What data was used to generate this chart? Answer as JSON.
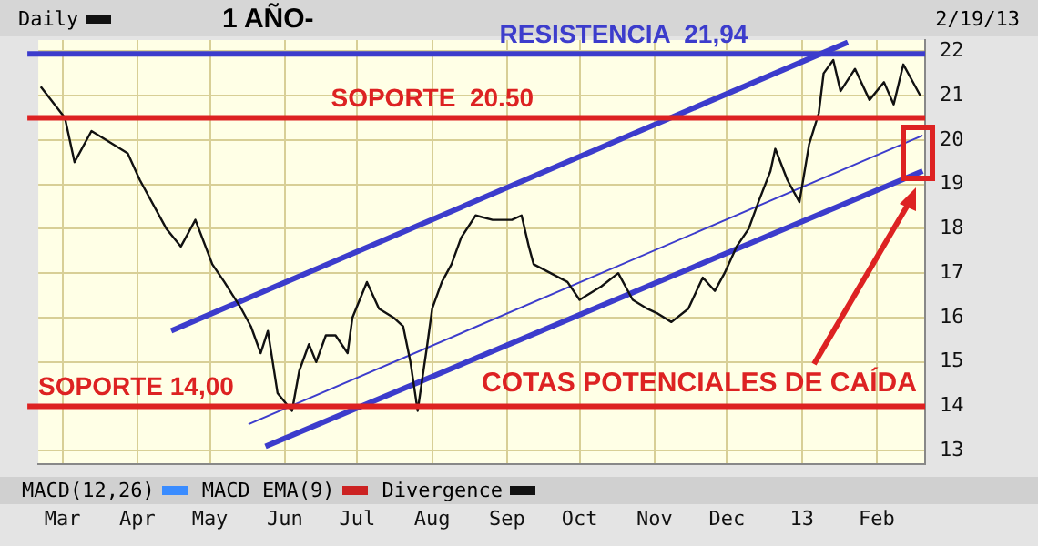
{
  "chart_data": {
    "type": "line",
    "title": "1 AÑO-",
    "annotations": [
      "COTAS POTENCIALES DE CAÍDA",
      "MACD(12,26)",
      "MACD EMA(9)",
      "Divergence",
      "2/19/13"
    ],
    "legend": "top left",
    "grid": true,
    "marker": "none",
    "xlim": [
      "2012-02-20",
      "2013-02-21"
    ],
    "xticks": [
      {
        "value": "2012-03-01",
        "label": "Mar"
      },
      {
        "value": "2012-04-01",
        "label": "Apr"
      },
      {
        "value": "2012-05-01",
        "label": "May"
      },
      {
        "value": "2012-06-01",
        "label": "Jun"
      },
      {
        "value": "2012-07-01",
        "label": "Jul"
      },
      {
        "value": "2012-08-01",
        "label": "Aug"
      },
      {
        "value": "2012-09-01",
        "label": "Sep"
      },
      {
        "value": "2012-10-01",
        "label": "Oct"
      },
      {
        "value": "2012-11-01",
        "label": "Nov"
      },
      {
        "value": "2012-12-01",
        "label": "Dec"
      },
      {
        "value": "2013-01-01",
        "label": "13"
      },
      {
        "value": "2013-02-01",
        "label": "Feb"
      }
    ],
    "ylim": [
      12.7,
      22.25
    ],
    "yticks": [
      13,
      14,
      15,
      16,
      17,
      18,
      19,
      20,
      21,
      22
    ],
    "ref_lines": [
      {
        "axis": "y",
        "value": 21.94,
        "label": "RESISTENCIA  21,94",
        "color": "#3c3ccc"
      },
      {
        "axis": "y",
        "value": 20.5,
        "label": "SOPORTE  20.50",
        "color": "#dd2222"
      },
      {
        "axis": "y",
        "value": 14.0,
        "label": "SOPORTE 14,00",
        "color": "#dd2222"
      }
    ],
    "series": [
      {
        "name": "Daily",
        "color": "#111111",
        "x": [
          "2012-02-21",
          "2012-03-02",
          "2012-03-06",
          "2012-03-13",
          "2012-03-19",
          "2012-03-28",
          "2012-04-02",
          "2012-04-09",
          "2012-04-13",
          "2012-04-19",
          "2012-04-25",
          "2012-05-02",
          "2012-05-07",
          "2012-05-14",
          "2012-05-18",
          "2012-05-22",
          "2012-05-25",
          "2012-05-29",
          "2012-06-04",
          "2012-06-07",
          "2012-06-11",
          "2012-06-14",
          "2012-06-18",
          "2012-06-22",
          "2012-06-27",
          "2012-06-29",
          "2012-07-05",
          "2012-07-10",
          "2012-07-16",
          "2012-07-20",
          "2012-07-23",
          "2012-07-26",
          "2012-07-30",
          "2012-08-01",
          "2012-08-05",
          "2012-08-09",
          "2012-08-13",
          "2012-08-19",
          "2012-08-26",
          "2012-09-03",
          "2012-09-07",
          "2012-09-10",
          "2012-09-12",
          "2012-09-19",
          "2012-09-26",
          "2012-10-01",
          "2012-10-04",
          "2012-10-10",
          "2012-10-17",
          "2012-10-23",
          "2012-10-29",
          "2012-11-02",
          "2012-11-08",
          "2012-11-15",
          "2012-11-21",
          "2012-11-26",
          "2012-11-30",
          "2012-12-05",
          "2012-12-10",
          "2012-12-14",
          "2012-12-19",
          "2012-12-21",
          "2012-12-26",
          "2012-12-31",
          "2013-01-04",
          "2013-01-08",
          "2013-01-10",
          "2013-01-14",
          "2013-01-17",
          "2013-01-23",
          "2013-01-29",
          "2013-02-04",
          "2013-02-08",
          "2013-02-12",
          "2013-02-15",
          "2013-02-19"
        ],
        "values": [
          21.2,
          20.5,
          19.5,
          20.2,
          20.0,
          19.7,
          19.1,
          18.4,
          18.0,
          17.6,
          18.2,
          17.2,
          16.8,
          16.2,
          15.8,
          15.2,
          15.7,
          14.3,
          13.9,
          14.8,
          15.4,
          15.0,
          15.6,
          15.6,
          15.2,
          16.0,
          16.8,
          16.2,
          16.0,
          15.8,
          15.0,
          13.9,
          15.4,
          16.2,
          16.8,
          17.2,
          17.8,
          18.3,
          18.2,
          18.2,
          18.3,
          17.6,
          17.2,
          17.0,
          16.8,
          16.4,
          16.5,
          16.7,
          17.0,
          16.4,
          16.2,
          16.1,
          15.9,
          16.2,
          16.9,
          16.6,
          17.0,
          17.6,
          18.0,
          18.6,
          19.3,
          19.8,
          19.1,
          18.6,
          19.9,
          20.6,
          21.5,
          21.8,
          21.1,
          21.6,
          20.9,
          21.3,
          20.8,
          21.7,
          21.4,
          21.0
        ]
      },
      {
        "color": "#3c3ccc",
        "x": [
          "2012-04-15",
          "2013-01-20"
        ],
        "values": [
          15.7,
          22.2
        ]
      },
      {
        "color": "#3c3ccc",
        "x": [
          "2012-05-24",
          "2013-02-20"
        ],
        "values": [
          13.1,
          19.3
        ]
      },
      {
        "color": "#3c3ccc",
        "x": [
          "2012-05-17",
          "2013-02-20"
        ],
        "values": [
          13.6,
          20.1
        ]
      }
    ]
  }
}
